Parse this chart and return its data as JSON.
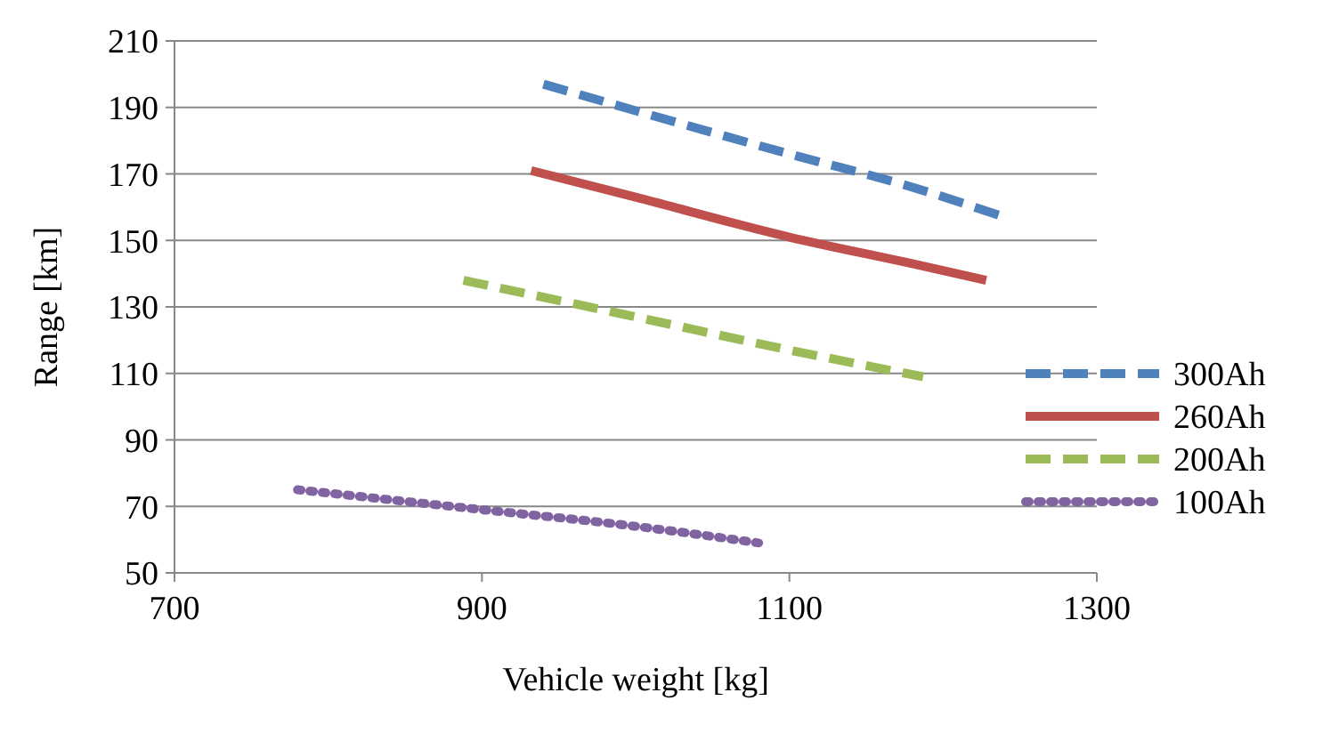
{
  "chart_data": {
    "type": "line",
    "xlabel": "Vehicle weight [kg]",
    "ylabel": "Range [km]",
    "xlim": [
      700,
      1300
    ],
    "xticks": [
      700,
      900,
      1100,
      1300
    ],
    "ylim": [
      50,
      210
    ],
    "yticks": [
      50,
      70,
      90,
      110,
      130,
      150,
      170,
      190,
      210
    ],
    "grid": "y",
    "legend": "right",
    "series": [
      {
        "name": "300Ah",
        "color": "#4f81bd",
        "line_style": "dashed",
        "x": [
          940,
          1000,
          1100,
          1180,
          1240
        ],
        "values": [
          197,
          189,
          176,
          166,
          157
        ]
      },
      {
        "name": "260Ah",
        "color": "#c0504d",
        "line_style": "solid",
        "x": [
          932,
          1000,
          1100,
          1180,
          1228
        ],
        "values": [
          171,
          163,
          151,
          143,
          138
        ]
      },
      {
        "name": "200Ah",
        "color": "#9bbb59",
        "line_style": "dashed",
        "x": [
          888,
          1000,
          1100,
          1187
        ],
        "values": [
          138,
          127,
          117,
          109
        ]
      },
      {
        "name": "100Ah",
        "color": "#8064a2",
        "line_style": "dotted",
        "x": [
          780,
          900,
          1000,
          1080
        ],
        "values": [
          75,
          69,
          64,
          59
        ]
      }
    ]
  }
}
